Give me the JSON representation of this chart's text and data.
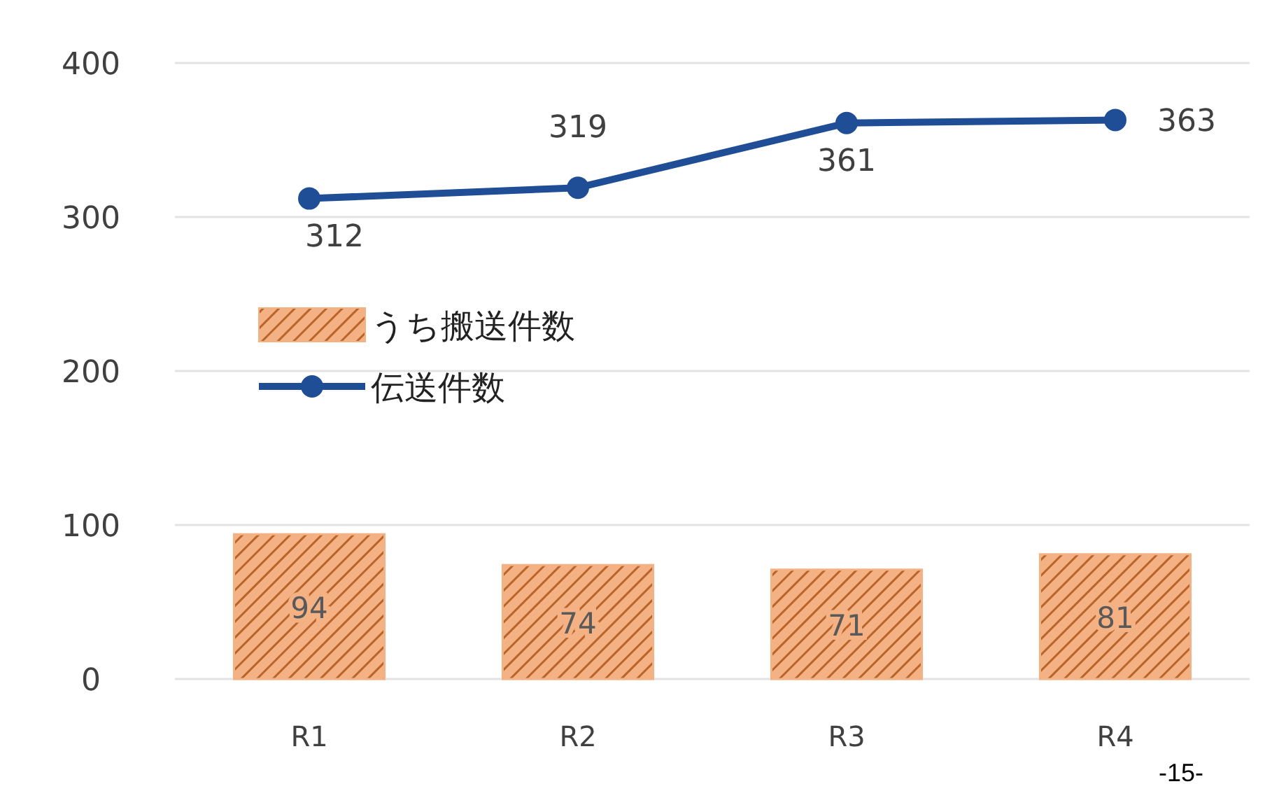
{
  "chart_data": {
    "type": "bar",
    "categories": [
      "R1",
      "R2",
      "R3",
      "R4"
    ],
    "series": [
      {
        "name": "うち搬送件数",
        "color": "#f4b183",
        "values": [
          94,
          74,
          71,
          81
        ]
      },
      {
        "name": "伝送件数",
        "type": "line",
        "color": "#1f4e96",
        "values": [
          312,
          319,
          361,
          363
        ]
      }
    ],
    "ylim": [
      0,
      400
    ],
    "yticks": [
      0,
      100,
      200,
      300,
      400
    ],
    "grid": "y",
    "legend": "left",
    "data_labels": true,
    "marker": "circle",
    "line_style": "solid",
    "annotations": [
      "-15-"
    ]
  }
}
